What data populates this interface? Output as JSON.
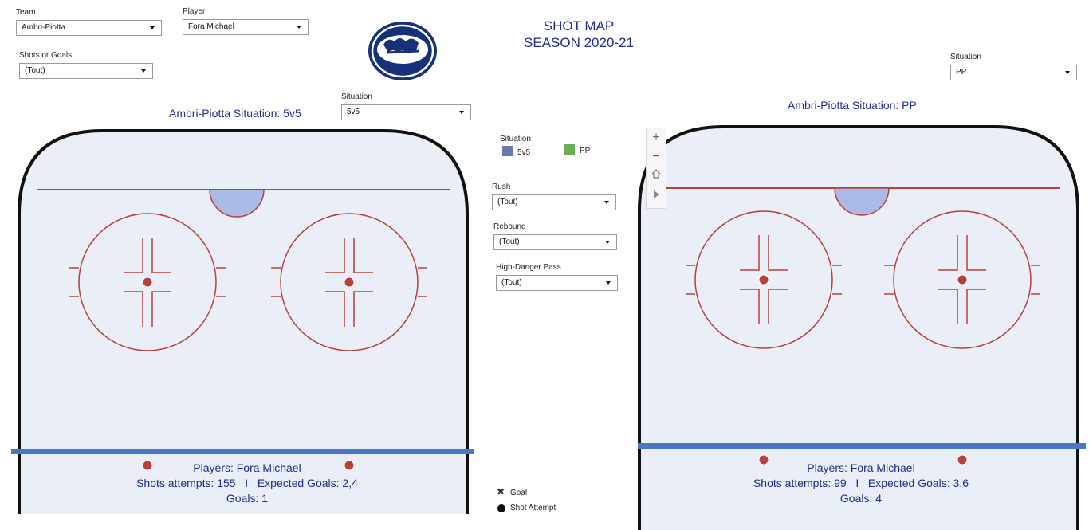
{
  "header": {
    "team_label": "Team",
    "team_value": "Ambri-Piotta",
    "player_label": "Player",
    "player_value": "Fora Michael",
    "shots_label": "Shots or Goals",
    "shots_value": "(Tout)",
    "title_line1": "SHOT MAP",
    "title_line2": "SEASON 2020-21",
    "right_situation_label": "Situation",
    "right_situation_value": "PP"
  },
  "left_panel": {
    "situation_label": "Situation",
    "situation_value": "5v5",
    "heading": "Ambri-Piotta Situation: 5v5",
    "players": "Players: Fora Michael",
    "shots": "Shots attempts: 155   I   Expected Goals: 2,4",
    "goals": "Goals: 1"
  },
  "right_panel": {
    "heading": "Ambri-Piotta Situation: PP",
    "players": "Players: Fora Michael",
    "shots": "Shots attempts: 99   I   Expected Goals: 3,6",
    "goals": "Goals: 4"
  },
  "filters": {
    "legend_title": "Situation",
    "legend_5v5": "5v5",
    "legend_pp": "PP",
    "rush_label": "Rush",
    "rush_value": "(Tout)",
    "rebound_label": "Rebound",
    "rebound_value": "(Tout)",
    "hdp_label": "High-Danger Pass",
    "hdp_value": "(Tout)",
    "goal_legend": "Goal",
    "shot_legend": "Shot Attempt"
  },
  "zoom": {
    "plus": "+",
    "minus": "−"
  },
  "colors": {
    "c5v5": "#6a7ab0",
    "cpp": "#6bad57",
    "title": "#1f2f8c",
    "rink_red": "#b8403a",
    "blueline": "#4a77c4",
    "logo_navy": "#17307a"
  }
}
